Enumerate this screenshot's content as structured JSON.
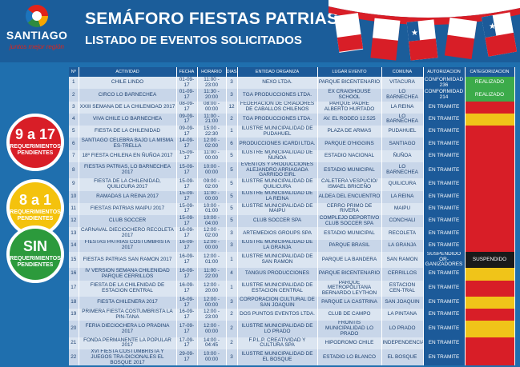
{
  "header": {
    "logo_text": "SANTIAGO",
    "logo_sub": "juntos mejor región",
    "title": "SEMÁFORO FIESTAS PATRIAS",
    "subtitle": "LISTADO DE EVENTOS SOLICITADOS"
  },
  "legend": {
    "red": {
      "big": "9 a 17",
      "small": "REQUERIMIENTOS PENDIENTES",
      "color": "#d81e27"
    },
    "yellow": {
      "big": "8 a 1",
      "small": "REQUERIMIENTOS PENDIENTES",
      "color": "#f4c20d"
    },
    "green": {
      "big": "SIN",
      "small": "REQUERIMIENTOS PENDIENTES",
      "color": "#2c9a3c"
    }
  },
  "table": {
    "columns": [
      "Nº",
      "ACTIVIDAD",
      "FECHA",
      "HORARIO",
      "DIAS",
      "ENTIDAD ORGANIZA",
      "LUGAR EVENTO",
      "COMUNA",
      "AUTORIZACION",
      "CATEGORIZACION"
    ],
    "rows": [
      {
        "n": "1",
        "actividad": "CHILE LINDO",
        "fecha": "01-09-17",
        "horario": "11:00 - 23:00",
        "dias": "3",
        "entidad": "NEXO LTDA.",
        "lugar": "PARQUE BICENTENARIO",
        "comuna": "VITACURA",
        "autorizacion": "CONFORMIDAD 236",
        "categoria": "REALIZADO",
        "cat": "green"
      },
      {
        "n": "2",
        "actividad": "CIRCO LO BARNECHEA",
        "fecha": "01-09-17",
        "horario": "11:30 - 20:00",
        "dias": "3",
        "entidad": "TGA PRODUCCIONES LTDA.",
        "lugar": "EX CRAIGHOUSE SCHOOL",
        "comuna": "LO BARNECHEA",
        "autorizacion": "CONFORMIDAD 214",
        "categoria": "REALIZADO",
        "cat": "green"
      },
      {
        "n": "3",
        "actividad": "XXIII SEMANA DE LA CHILENIDAD 2017",
        "fecha": "08-09-17",
        "horario": "08:00 - 00:00",
        "dias": "12",
        "entidad": "FEDERACION DE CRIADORES DE CABALLOS CHILENOS",
        "lugar": "PARQUE PADRE ALBERTO HURTADO",
        "comuna": "LA REINA",
        "autorizacion": "EN TRAMITE",
        "categoria": "",
        "cat": "red"
      },
      {
        "n": "4",
        "actividad": "VIVA CHILE LO BARNECHEA",
        "fecha": "09-09-17",
        "horario": "11:00 - 21:00",
        "dias": "2",
        "entidad": "TGA PRODUCCIONES LTDA.",
        "lugar": "AV. EL RODEO 12.525",
        "comuna": "LO BARNECHEA",
        "autorizacion": "EN TRAMITE",
        "categoria": "",
        "cat": "yellow"
      },
      {
        "n": "5",
        "actividad": "FIESTA DE LA CHILENIDAD",
        "fecha": "09-09-17",
        "horario": "15:00 - 22:30",
        "dias": "1",
        "entidad": "ILUSTRE MUNICIPALIDAD DE PUDAHUEL",
        "lugar": "PLAZA DE ARMAS",
        "comuna": "PUDAHUEL",
        "autorizacion": "EN TRAMITE",
        "categoria": "",
        "cat": "red"
      },
      {
        "n": "6",
        "actividad": "SANTIAGO CELEBRA BAJO LA MISMA ES-TRELLA",
        "fecha": "14-09-17",
        "horario": "12:00 - 02:00",
        "dias": "6",
        "entidad": "PRODUCCIONES ICARDI LTDA.",
        "lugar": "PARQUE O'HIGGINS",
        "comuna": "SANTIAGO",
        "autorizacion": "EN TRAMITE",
        "categoria": "",
        "cat": "red"
      },
      {
        "n": "7",
        "actividad": "18º FIESTA CHILENA EN ÑUÑOA 2017",
        "fecha": "15-09-17",
        "horario": "11:00 - 00:00",
        "dias": "5",
        "entidad": "ILUSTRE MUNICIPALIDAD DE ÑUÑOA",
        "lugar": "ESTADIO NACIONAL",
        "comuna": "ÑUÑOA",
        "autorizacion": "EN TRAMITE",
        "categoria": "",
        "cat": "red"
      },
      {
        "n": "8",
        "actividad": "FIESTAS PATRIAS, LO BARNECHEA 2017",
        "fecha": "15-09-17",
        "horario": "10:00 - 00:00",
        "dias": "5",
        "entidad": "EVENTOS Y PRODUCCIONES ALEJANDRO ARRIAGADA GARRIDO EIRL",
        "lugar": "ESTADIO MUNICIPAL",
        "comuna": "LO BARNECHEA",
        "autorizacion": "EN TRAMITE",
        "categoria": "",
        "cat": "red"
      },
      {
        "n": "9",
        "actividad": "FIESTA DE LA CHILENIDAD, QUILICURA 2017",
        "fecha": "15-09-17",
        "horario": "09:00 - 02:00",
        "dias": "5",
        "entidad": "ILUSTRE MUNICIPALIDAD DE QUILICURA",
        "lugar": "CALETERA VESPUCIO/ ISMAEL BRICEÑO",
        "comuna": "QUILICURA",
        "autorizacion": "EN TRAMITE",
        "categoria": "",
        "cat": "red"
      },
      {
        "n": "10",
        "actividad": "RAMADAS LA REINA 2017",
        "fecha": "15-09-17",
        "horario": "11:00 - 00:00",
        "dias": "5",
        "entidad": "ILUSTRE MUNICIPALIDAD DE LA REINA",
        "lugar": "ALDEA DEL ENCUENTRO",
        "comuna": "LA REINA",
        "autorizacion": "EN TRAMITE",
        "categoria": "",
        "cat": "red"
      },
      {
        "n": "11",
        "actividad": "FIESTAS PATRIAS MAIPU 2017",
        "fecha": "15-09-17",
        "horario": "10:00 - 01:00",
        "dias": "5",
        "entidad": "ILUSTRE MUNICIPALIDAD DE MAIPU",
        "lugar": "CERRO PRIMO DE RIVERA",
        "comuna": "MAIPU",
        "autorizacion": "EN TRAMITE",
        "categoria": "",
        "cat": "red"
      },
      {
        "n": "12",
        "actividad": "CLUB SOCCER",
        "fecha": "15-09-17",
        "horario": "10:00 - 04:00",
        "dias": "5",
        "entidad": "CLUB SOCCER SPA",
        "lugar": "COMPLEJO DEPORTIVO CLUB SOCCER SPA",
        "comuna": "CONCHALI",
        "autorizacion": "EN TRAMITE",
        "categoria": "",
        "cat": "red"
      },
      {
        "n": "13",
        "actividad": "CARNAVAL DIECIOCHERO RECOLETA 2017",
        "fecha": "16-09-17",
        "horario": "12:00 - 02:00",
        "dias": "3",
        "entidad": "ARTEMEDIOS GROUPS SPA",
        "lugar": "ESTADIO MUNICIPAL",
        "comuna": "RECOLETA",
        "autorizacion": "EN TRAMITE",
        "categoria": "",
        "cat": "red"
      },
      {
        "n": "14",
        "actividad": "FIESTAS PATRIAS COSTUMBRISTA 2017",
        "fecha": "16-09-17",
        "horario": "12:00 - 00:00",
        "dias": "3",
        "entidad": "ILUSTRE MUNICIPALIDAD DE LA GRANJA",
        "lugar": "PARQUE BRASIL",
        "comuna": "LA GRANJA",
        "autorizacion": "EN TRAMITE",
        "categoria": "",
        "cat": "red"
      },
      {
        "n": "15",
        "actividad": "FIESTAS PATRIAS SAN RAMON 2017",
        "fecha": "16-09-17",
        "horario": "12:00 - 01:00",
        "dias": "1",
        "entidad": "ILUSTRE MUNICIPALIDAD DE SAN RAMON",
        "lugar": "PARQUE LA BANDERA",
        "comuna": "SAN RAMON",
        "autorizacion": "SUSPENDIDO OR-GANIZADORES",
        "categoria": "SUSPENDIDO",
        "cat": "black"
      },
      {
        "n": "16",
        "actividad": "IV VERSION SEMANA CHILENIDAD PARQUE CERRILLOS",
        "fecha": "16-09-17",
        "horario": "11:00 - 22:00",
        "dias": "4",
        "entidad": "TANGUS PRODUCCIONES",
        "lugar": "PARQUE BICENTENARIO",
        "comuna": "CERRILLOS",
        "autorizacion": "EN TRAMITE",
        "categoria": "",
        "cat": "yellow"
      },
      {
        "n": "17",
        "actividad": "FIESTA DE LA CHILENIDAD DE ESTACION CENTRAL",
        "fecha": "16-09-17",
        "horario": "12:00 - 20:00",
        "dias": "1",
        "entidad": "ILUSTRE MUNICIPALIDAD DE ESTACION CENTRAL",
        "lugar": "PARQUE METROPOLITANA BERNARDO LEYTHON",
        "comuna": "ESTACION CEN-TRAL",
        "autorizacion": "EN TRAMITE",
        "categoria": "",
        "cat": "red"
      },
      {
        "n": "18",
        "actividad": "FIESTA CHILENERA 2017",
        "fecha": "16-09-17",
        "horario": "12:00 - 00:00",
        "dias": "3",
        "entidad": "CORPORACION CULTURAL DE SAN JOAQUIN",
        "lugar": "PARQUE LA CASTRINA",
        "comuna": "SAN JOAQUIN",
        "autorizacion": "EN TRAMITE",
        "categoria": "",
        "cat": "yellow"
      },
      {
        "n": "19",
        "actividad": "PRIMERA FIESTA COSTUMBRISTA LA PIN-TANA",
        "fecha": "16-09-17",
        "horario": "12:00 - 23:00",
        "dias": "2",
        "entidad": "DOS PUNTOS EVENTOS LTDA.",
        "lugar": "CLUB DE CAMPO",
        "comuna": "LA PINTANA",
        "autorizacion": "EN TRAMITE",
        "categoria": "",
        "cat": "red"
      },
      {
        "n": "20",
        "actividad": "FERIA DIECIOCHERA LO PRADINA 2017",
        "fecha": "17-09-17",
        "horario": "12:00 - 00:00",
        "dias": "2",
        "entidad": "ILUSTRE MUNICIPALIDAD DE LO PRADO",
        "lugar": "FRONTIS MUNICIPALIDAD LO PRADO",
        "comuna": "LO PRADO",
        "autorizacion": "EN TRAMITE",
        "categoria": "",
        "cat": "yellow"
      },
      {
        "n": "21",
        "actividad": "FONDA PERMANENTE LA POPULAR 2017",
        "fecha": "17-09-17",
        "horario": "14:00 - 04:45",
        "dias": "2",
        "entidad": "F.P.L.P. CREATIVIDAD Y CULTURA SPA",
        "lugar": "HIPODROMO CHILE",
        "comuna": "INDEPENDENCIA",
        "autorizacion": "EN TRAMITE",
        "categoria": "",
        "cat": "red"
      },
      {
        "n": "22",
        "actividad": "XVI FIESTA COSTUMBRISTA Y JUEGOS TRA-DICIONALES EL BOSQUE 2017",
        "fecha": "29-09-17",
        "horario": "10:00 - 00:00",
        "dias": "3",
        "entidad": "ILUSTRE MUNICIPALIDAD DE EL BOSQUE",
        "lugar": "ESTADIO LO BLANCO",
        "comuna": "EL BOSQUE",
        "autorizacion": "EN TRAMITE",
        "categoria": "",
        "cat": "red"
      }
    ]
  }
}
